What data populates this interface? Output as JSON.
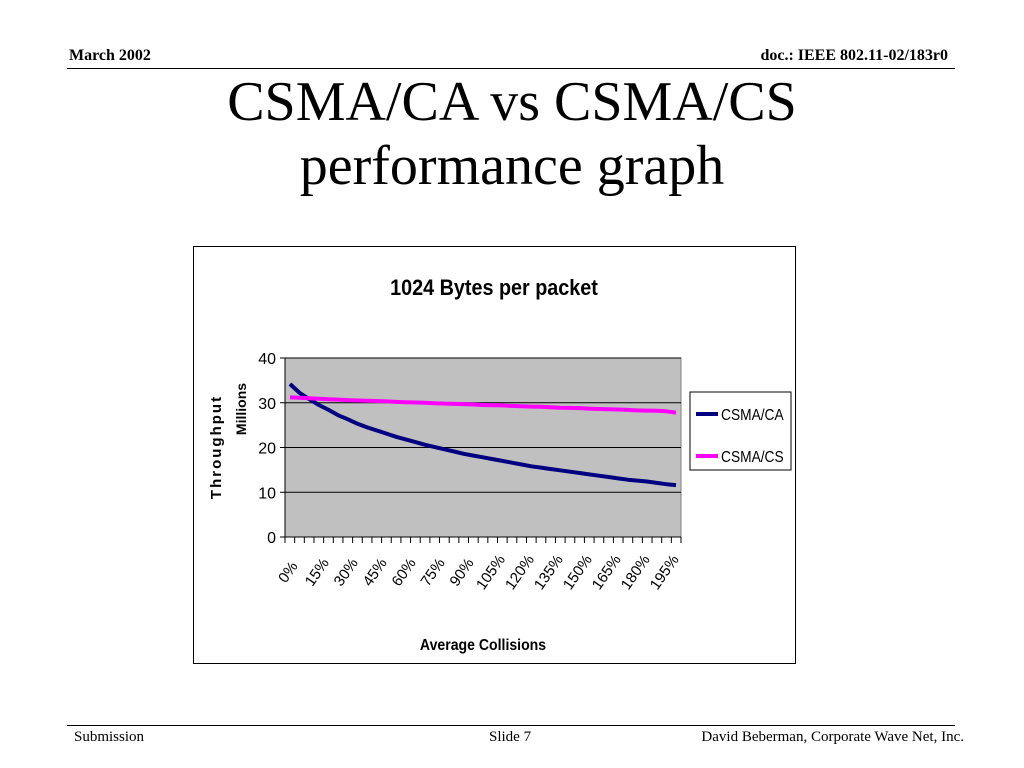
{
  "header": {
    "date": "March 2002",
    "doc": "doc.: IEEE 802.11-02/183r0"
  },
  "slide": {
    "title_line1": "CSMA/CA vs CSMA/CS",
    "title_line2": "performance graph"
  },
  "footer": {
    "left": "Submission",
    "center": "Slide 7",
    "right": "David Beberman, Corporate Wave Net, Inc."
  },
  "chart_data": {
    "type": "line",
    "title": "1024 Bytes per packet",
    "xlabel": "Average Collisions",
    "ylabel": "Throughput",
    "ylabel_units": "Millions",
    "ylim": [
      0,
      40
    ],
    "yticks": [
      0,
      10,
      20,
      30,
      40
    ],
    "xtick_labels": [
      "0%",
      "15%",
      "30%",
      "45%",
      "60%",
      "75%",
      "90%",
      "105%",
      "120%",
      "135%",
      "150%",
      "165%",
      "180%",
      "195%"
    ],
    "x": [
      "0%",
      "5%",
      "10%",
      "15%",
      "20%",
      "25%",
      "30%",
      "35%",
      "40%",
      "45%",
      "50%",
      "55%",
      "60%",
      "65%",
      "70%",
      "75%",
      "80%",
      "85%",
      "90%",
      "95%",
      "100%",
      "105%",
      "110%",
      "115%",
      "120%",
      "125%",
      "130%",
      "135%",
      "140%",
      "145%",
      "150%",
      "155%",
      "160%",
      "165%",
      "170%",
      "175%",
      "180%",
      "185%",
      "190%",
      "195%",
      "200%"
    ],
    "grid": true,
    "legend": "right",
    "background": "#c0c0c0",
    "series": [
      {
        "name": "CSMA/CA",
        "color": "#000080",
        "values": [
          34.2,
          32.2,
          30.8,
          29.5,
          28.4,
          27.2,
          26.3,
          25.3,
          24.5,
          23.8,
          23.1,
          22.4,
          21.8,
          21.2,
          20.6,
          20.1,
          19.6,
          19.1,
          18.6,
          18.2,
          17.8,
          17.4,
          17.0,
          16.6,
          16.2,
          15.8,
          15.5,
          15.2,
          14.9,
          14.6,
          14.3,
          14.0,
          13.7,
          13.4,
          13.1,
          12.8,
          12.6,
          12.4,
          12.1,
          11.8,
          11.6
        ]
      },
      {
        "name": "CSMA/CS",
        "color": "#ff00ff",
        "values": [
          31.2,
          31.1,
          31.0,
          30.9,
          30.8,
          30.7,
          30.6,
          30.5,
          30.45,
          30.4,
          30.3,
          30.2,
          30.1,
          30.05,
          30.0,
          29.9,
          29.8,
          29.75,
          29.7,
          29.6,
          29.5,
          29.45,
          29.4,
          29.3,
          29.2,
          29.15,
          29.1,
          29.0,
          28.9,
          28.85,
          28.8,
          28.7,
          28.6,
          28.55,
          28.5,
          28.4,
          28.3,
          28.25,
          28.2,
          28.1,
          27.8
        ]
      }
    ]
  }
}
